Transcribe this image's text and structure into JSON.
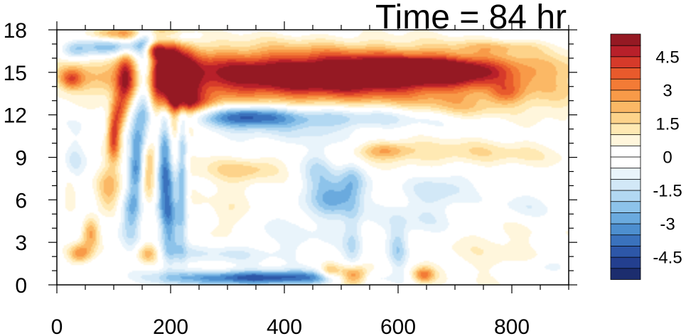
{
  "chart_data": {
    "type": "heatmap",
    "title": "Time = 84 hr",
    "xlabel": "",
    "ylabel": "",
    "xlim": [
      0,
      900
    ],
    "ylim": [
      0,
      18
    ],
    "x_ticks": [
      "0",
      "200",
      "400",
      "600",
      "800"
    ],
    "y_ticks": [
      "0",
      "3",
      "6",
      "9",
      "12",
      "15",
      "18"
    ],
    "colorbar": {
      "levels": [
        -5.5,
        -5,
        -4.5,
        -4,
        -3.5,
        -3,
        -2.5,
        -2,
        -1.5,
        -1,
        -0.5,
        0,
        0.5,
        1,
        1.5,
        2,
        2.5,
        3,
        3.5,
        4,
        4.5,
        5,
        5.5
      ],
      "tick_labels": [
        "-4.5",
        "-3",
        "-1.5",
        "0",
        "1.5",
        "3",
        "4.5"
      ],
      "colors": [
        "#1c2d6e",
        "#233f8f",
        "#2d57a8",
        "#3a72bd",
        "#4d8fcf",
        "#6aaade",
        "#8dc3ea",
        "#b2d8f2",
        "#d2e8f7",
        "#e9f4fb",
        "#ffffff",
        "#ffffff",
        "#fff6dc",
        "#ffe9b3",
        "#fdd38a",
        "#fbb865",
        "#f89a48",
        "#f37b36",
        "#e85a2c",
        "#d63a2a",
        "#b8202a",
        "#951923"
      ]
    },
    "features": [
      {
        "x": 470,
        "y": 14.8,
        "sx": 260,
        "sy": 1.3,
        "value": 6.5
      },
      {
        "x": 650,
        "y": 15.2,
        "sx": 90,
        "sy": 0.6,
        "value": 3.5
      },
      {
        "x": 780,
        "y": 16.8,
        "sx": 60,
        "sy": 0.3,
        "value": 1.0
      },
      {
        "x": 200,
        "y": 14.0,
        "sx": 28,
        "sy": 3.0,
        "value": 5.5
      },
      {
        "x": 240,
        "y": 12.8,
        "sx": 30,
        "sy": 0.5,
        "value": 2.0
      },
      {
        "x": 400,
        "y": 11.8,
        "sx": 170,
        "sy": 0.55,
        "value": -2.5
      },
      {
        "x": 340,
        "y": 12.0,
        "sx": 45,
        "sy": 0.5,
        "value": -2.2
      },
      {
        "x": 190,
        "y": 9.5,
        "sx": 10,
        "sy": 3.5,
        "value": -4.5
      },
      {
        "x": 220,
        "y": 8.5,
        "sx": 7,
        "sy": 4.0,
        "value": -3.0
      },
      {
        "x": 200,
        "y": 4.5,
        "sx": 10,
        "sy": 2.5,
        "value": -2.0
      },
      {
        "x": 155,
        "y": 14.5,
        "sx": 12,
        "sy": 3.0,
        "value": -4.0
      },
      {
        "x": 100,
        "y": 16.8,
        "sx": 45,
        "sy": 0.5,
        "value": -3.5
      },
      {
        "x": 120,
        "y": 17.7,
        "sx": 45,
        "sy": 0.4,
        "value": 3.0
      },
      {
        "x": 200,
        "y": 17.5,
        "sx": 30,
        "sy": 0.4,
        "value": -2.5
      },
      {
        "x": 170,
        "y": 16.6,
        "sx": 14,
        "sy": 0.4,
        "value": 3.5
      },
      {
        "x": 120,
        "y": 14.5,
        "sx": 10,
        "sy": 1.5,
        "value": 2.5
      },
      {
        "x": 110,
        "y": 12.2,
        "sx": 10,
        "sy": 1.0,
        "value": 3.0
      },
      {
        "x": 100,
        "y": 10.5,
        "sx": 8,
        "sy": 1.2,
        "value": 4.0
      },
      {
        "x": 90,
        "y": 6.5,
        "sx": 16,
        "sy": 1.5,
        "value": 2.5
      },
      {
        "x": 70,
        "y": 4.5,
        "sx": 22,
        "sy": 0.9,
        "value": -1.5
      },
      {
        "x": 60,
        "y": 3.8,
        "sx": 12,
        "sy": 0.8,
        "value": 3.5
      },
      {
        "x": 40,
        "y": 2.2,
        "sx": 15,
        "sy": 0.5,
        "value": 3.0
      },
      {
        "x": 140,
        "y": 8.5,
        "sx": 10,
        "sy": 2.0,
        "value": -3.0
      },
      {
        "x": 30,
        "y": 8.0,
        "sx": 12,
        "sy": 1.5,
        "value": -1.5
      },
      {
        "x": 25,
        "y": 6.5,
        "sx": 10,
        "sy": 1.0,
        "value": 1.8
      },
      {
        "x": 25,
        "y": 14.5,
        "sx": 14,
        "sy": 0.5,
        "value": 2.5
      },
      {
        "x": 30,
        "y": 16.5,
        "sx": 16,
        "sy": 0.5,
        "value": -1.6
      },
      {
        "x": 160,
        "y": 2.2,
        "sx": 14,
        "sy": 0.5,
        "value": 2.5
      },
      {
        "x": 130,
        "y": 5.0,
        "sx": 12,
        "sy": 1.5,
        "value": -2.2
      },
      {
        "x": 160,
        "y": 8.0,
        "sx": 10,
        "sy": 1.5,
        "value": 2.5
      },
      {
        "x": 360,
        "y": 0.5,
        "sx": 110,
        "sy": 0.35,
        "value": -4.5
      },
      {
        "x": 280,
        "y": 2.2,
        "sx": 80,
        "sy": 0.45,
        "value": -1.0
      },
      {
        "x": 300,
        "y": 7.5,
        "sx": 55,
        "sy": 1.5,
        "value": 0.8
      },
      {
        "x": 340,
        "y": 8.2,
        "sx": 45,
        "sy": 0.5,
        "value": 1.2
      },
      {
        "x": 490,
        "y": 6.3,
        "sx": 30,
        "sy": 1.0,
        "value": -2.6
      },
      {
        "x": 460,
        "y": 8.5,
        "sx": 20,
        "sy": 1.2,
        "value": -1.6
      },
      {
        "x": 520,
        "y": 3.0,
        "sx": 12,
        "sy": 2.0,
        "value": -1.4
      },
      {
        "x": 520,
        "y": 0.6,
        "sx": 18,
        "sy": 0.5,
        "value": 5.0
      },
      {
        "x": 480,
        "y": 0.9,
        "sx": 12,
        "sy": 0.4,
        "value": 2.5
      },
      {
        "x": 520,
        "y": 7.5,
        "sx": 15,
        "sy": 1.0,
        "value": -1.2
      },
      {
        "x": 600,
        "y": 2.5,
        "sx": 12,
        "sy": 1.2,
        "value": -1.8
      },
      {
        "x": 645,
        "y": 0.7,
        "sx": 14,
        "sy": 0.4,
        "value": 3.0
      },
      {
        "x": 650,
        "y": 4.8,
        "sx": 60,
        "sy": 1.2,
        "value": -1.2
      },
      {
        "x": 750,
        "y": 3.0,
        "sx": 90,
        "sy": 2.2,
        "value": 0.8
      },
      {
        "x": 700,
        "y": 9.3,
        "sx": 150,
        "sy": 0.7,
        "value": 1.4
      },
      {
        "x": 580,
        "y": 9.5,
        "sx": 30,
        "sy": 0.4,
        "value": 1.8
      },
      {
        "x": 720,
        "y": 12.5,
        "sx": 60,
        "sy": 0.6,
        "value": 1.2
      },
      {
        "x": 860,
        "y": 12.5,
        "sx": 40,
        "sy": 1.0,
        "value": 0.7
      },
      {
        "x": 790,
        "y": 13.5,
        "sx": 20,
        "sy": 0.5,
        "value": 1.5
      },
      {
        "x": 680,
        "y": 7.0,
        "sx": 40,
        "sy": 0.8,
        "value": -1.2
      },
      {
        "x": 820,
        "y": 5.5,
        "sx": 40,
        "sy": 0.8,
        "value": -1.0
      },
      {
        "x": 360,
        "y": 10.5,
        "sx": 120,
        "sy": 0.7,
        "value": -0.8
      },
      {
        "x": 420,
        "y": 4.0,
        "sx": 60,
        "sy": 1.5,
        "value": -0.6
      },
      {
        "x": 300,
        "y": 4.5,
        "sx": 20,
        "sy": 1.0,
        "value": 1.0
      },
      {
        "x": 860,
        "y": 1.3,
        "sx": 30,
        "sy": 0.4,
        "value": -1.0
      }
    ]
  }
}
